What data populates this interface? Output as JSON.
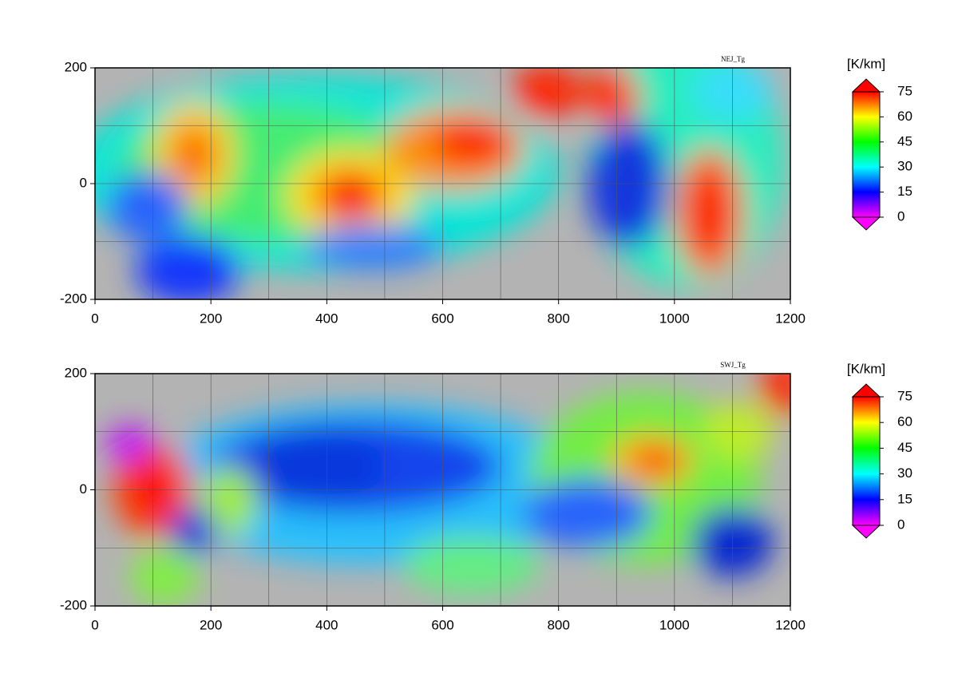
{
  "panels": [
    {
      "title": "NEJ_Tg",
      "xlim": [
        0,
        1200
      ],
      "ylim": [
        -200,
        200
      ],
      "xticks": [
        0,
        200,
        400,
        600,
        800,
        1000,
        1200
      ],
      "yticks": [
        -200,
        0,
        200
      ],
      "xminor": [
        100,
        300,
        500,
        700,
        900,
        1100
      ],
      "yminor": [
        -100,
        100
      ],
      "background": "#b3b3b3",
      "colorbar": {
        "label": "[K/km]",
        "lim": [
          0,
          75
        ],
        "ticks": [
          0,
          15,
          30,
          45,
          60,
          75
        ],
        "colors": [
          "#ff00ff",
          "#0000ff",
          "#00ffff",
          "#00ff00",
          "#ffff00",
          "#ff0000"
        ]
      }
    },
    {
      "title": "SWJ_Tg",
      "xlim": [
        0,
        1200
      ],
      "ylim": [
        -200,
        200
      ],
      "xticks": [
        0,
        200,
        400,
        600,
        800,
        1000,
        1200
      ],
      "yticks": [
        -200,
        0,
        200
      ],
      "xminor": [
        100,
        300,
        500,
        700,
        900,
        1100
      ],
      "yminor": [
        -100,
        100
      ],
      "background": "#b3b3b3",
      "colorbar": {
        "label": "[K/km]",
        "lim": [
          0,
          75
        ],
        "ticks": [
          0,
          15,
          30,
          45,
          60,
          75
        ],
        "colors": [
          "#ff00ff",
          "#0000ff",
          "#00ffff",
          "#00ff00",
          "#ffff00",
          "#ff0000"
        ]
      }
    }
  ]
}
